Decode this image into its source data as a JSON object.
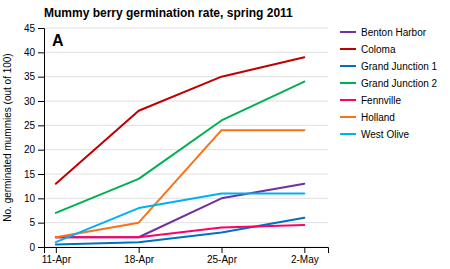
{
  "chart_data": {
    "type": "line",
    "title": "Mummy berry germination rate, spring 2011",
    "ylabel": "No. germinated mummies (out of 100)",
    "annotation": "A",
    "x": [
      0,
      7,
      14,
      21
    ],
    "xlim": [
      -1,
      23
    ],
    "xticks": [
      {
        "value": 0,
        "label": "11-Apr"
      },
      {
        "value": 7,
        "label": "18-Apr"
      },
      {
        "value": 14,
        "label": "25-Apr"
      },
      {
        "value": 21,
        "label": "2-May"
      }
    ],
    "ylim": [
      0,
      45
    ],
    "yticks": [
      0,
      5,
      10,
      15,
      20,
      25,
      30,
      35,
      40,
      45
    ],
    "grid": true,
    "legend": "right",
    "series": [
      {
        "name": "Benton Harbor",
        "color": "#7030a0",
        "values": [
          2,
          2,
          10,
          13
        ]
      },
      {
        "name": "Coloma",
        "color": "#c00000",
        "values": [
          13,
          28,
          35,
          39
        ]
      },
      {
        "name": "Grand Junction 1",
        "color": "#0070c0",
        "values": [
          0.5,
          1,
          3,
          6
        ]
      },
      {
        "name": "Grand Junction 2",
        "color": "#00b050",
        "values": [
          7,
          14,
          26,
          34
        ]
      },
      {
        "name": "Fennville",
        "color": "#ff0066",
        "values": [
          2,
          2,
          4,
          4.5
        ]
      },
      {
        "name": "Holland",
        "color": "#f97316",
        "values": [
          2,
          5,
          24,
          24
        ]
      },
      {
        "name": "West Olive",
        "color": "#00b0f0",
        "values": [
          1,
          8,
          11,
          11
        ]
      }
    ]
  }
}
